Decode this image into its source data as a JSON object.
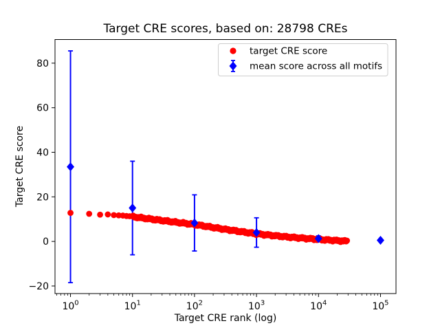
{
  "figure": {
    "background": "#ffffff",
    "axes_edge_color": "#000000",
    "legend_border_color": "#cccccc"
  },
  "chart_data": {
    "type": "scatter",
    "title": "Target CRE scores, based on: 28798 CREs",
    "xlabel": "Target CRE rank (log)",
    "ylabel": "Target CRE score",
    "x_scale": "log",
    "grid": false,
    "legend_position": "upper right",
    "xlim": [
      0.5623,
      177828
    ],
    "ylim": [
      -23.4,
      90.6
    ],
    "x_tick_exponents": [
      0,
      1,
      2,
      3,
      4,
      5
    ],
    "x_tick_base": "10",
    "y_ticks": [
      -20,
      0,
      20,
      40,
      60,
      80
    ],
    "series": [
      {
        "name": "target CRE score",
        "color": "#ff0000",
        "marker": "circle",
        "n_points": 28798,
        "points_profile": [
          {
            "rank": 1,
            "score": 12.8
          },
          {
            "rank": 2,
            "score": 12.4
          },
          {
            "rank": 3,
            "score": 12.0
          },
          {
            "rank": 4,
            "score": 12.1
          },
          {
            "rank": 5,
            "score": 11.8
          },
          {
            "rank": 6,
            "score": 11.7
          },
          {
            "rank": 7,
            "score": 11.6
          },
          {
            "rank": 8,
            "score": 11.4
          },
          {
            "rank": 9,
            "score": 11.3
          },
          {
            "rank": 10,
            "score": 11.1
          },
          {
            "rank": 32,
            "score": 9.3
          },
          {
            "rank": 100,
            "score": 7.6
          },
          {
            "rank": 316,
            "score": 5.4
          },
          {
            "rank": 1000,
            "score": 3.4
          },
          {
            "rank": 3162,
            "score": 2.0
          },
          {
            "rank": 10000,
            "score": 0.9
          },
          {
            "rank": 28798,
            "score": 0.1
          }
        ]
      },
      {
        "name": "mean score across all motifs",
        "color": "#0000ff",
        "marker": "diamond",
        "points": [
          {
            "rank": 1,
            "mean": 33.5,
            "err": 52.0
          },
          {
            "rank": 10,
            "mean": 15.0,
            "err": 21.0
          },
          {
            "rank": 100,
            "mean": 8.3,
            "err": 12.6
          },
          {
            "rank": 1000,
            "mean": 4.0,
            "err": 6.6
          },
          {
            "rank": 10000,
            "mean": 1.3,
            "err": 1.2
          },
          {
            "rank": 100000,
            "mean": 0.5,
            "err": 0.4
          }
        ]
      }
    ]
  }
}
